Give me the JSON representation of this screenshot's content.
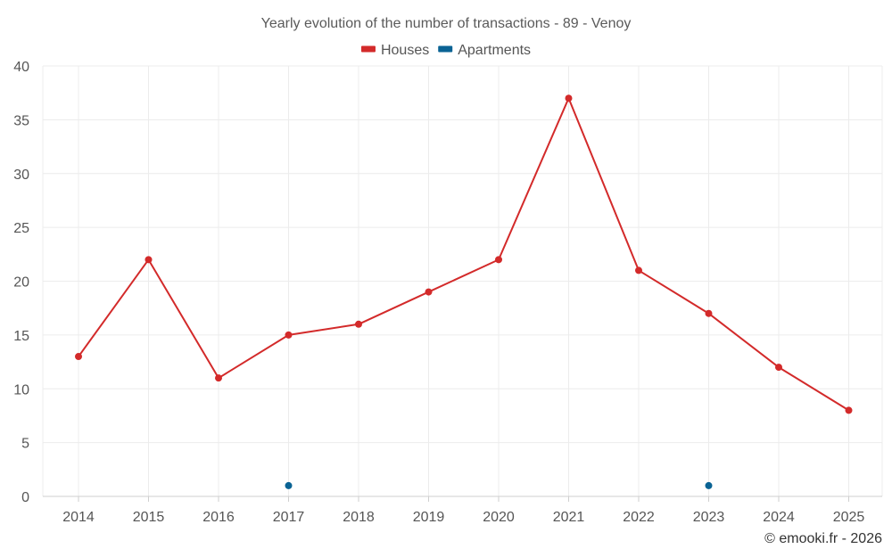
{
  "chart_data": {
    "type": "line",
    "title": "Yearly evolution of the number of transactions - 89 - Venoy",
    "xlabel": "",
    "ylabel": "",
    "categories": [
      "2014",
      "2015",
      "2016",
      "2017",
      "2018",
      "2019",
      "2020",
      "2021",
      "2022",
      "2023",
      "2024",
      "2025"
    ],
    "ylim": [
      0,
      40
    ],
    "yticks": [
      0,
      5,
      10,
      15,
      20,
      25,
      30,
      35,
      40
    ],
    "grid": true,
    "legend_position": "top-center",
    "series": [
      {
        "name": "Houses",
        "color": "#d32a2a",
        "values": [
          13,
          22,
          11,
          15,
          16,
          19,
          22,
          37,
          21,
          17,
          12,
          8
        ]
      },
      {
        "name": "Apartments",
        "color": "#0a6394",
        "values": [
          null,
          null,
          null,
          1,
          null,
          null,
          null,
          null,
          null,
          1,
          null,
          null
        ]
      }
    ],
    "credit": "© emooki.fr - 2026"
  }
}
